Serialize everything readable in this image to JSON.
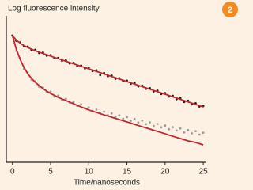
{
  "chart_data": {
    "type": "scatter",
    "title": "Log fluorescence intensity",
    "badge": "2",
    "x_label": "Time/nanoseconds",
    "xlim": [
      -0.8,
      25.3
    ],
    "xticks": [
      0,
      5,
      10,
      15,
      20,
      25
    ],
    "ylim": [
      0,
      100
    ],
    "x": [
      0,
      0.5,
      1,
      1.5,
      2,
      2.5,
      3,
      3.5,
      4,
      4.5,
      5,
      5.5,
      6,
      6.5,
      7,
      7.5,
      8,
      8.5,
      9,
      9.5,
      10,
      10.5,
      11,
      11.5,
      12,
      12.5,
      13,
      13.5,
      14,
      14.5,
      15,
      15.5,
      16,
      16.5,
      17,
      17.5,
      18,
      18.5,
      19,
      19.5,
      20,
      20.5,
      21,
      21.5,
      22,
      22.5,
      23,
      23.5,
      24,
      24.5,
      25
    ],
    "series": [
      {
        "type": "scatter",
        "color": "#9a9a9a",
        "values": [
          86.5,
          76.0,
          71.2,
          63.8,
          61.4,
          56.5,
          55.3,
          51.6,
          51.0,
          47.9,
          48.2,
          44.9,
          45.5,
          42.6,
          43.3,
          40.8,
          41.2,
          38.6,
          39.5,
          36.9,
          37.4,
          35.1,
          36.0,
          33.7,
          34.6,
          32.2,
          33.4,
          30.9,
          32.0,
          29.7,
          30.8,
          28.4,
          29.6,
          27.2,
          28.5,
          26.1,
          27.3,
          24.8,
          26.2,
          23.9,
          25.1,
          22.6,
          24.0,
          21.7,
          23.1,
          20.4,
          22.0,
          19.8,
          21.3,
          18.9,
          20.2
        ]
      },
      {
        "type": "scatter",
        "color": "#1a1a1a",
        "values": [
          86.5,
          83.0,
          81.8,
          79.2,
          78.9,
          76.6,
          76.8,
          74.6,
          74.9,
          72.8,
          73.1,
          71.0,
          71.3,
          69.4,
          69.6,
          67.5,
          67.9,
          65.9,
          66.0,
          64.1,
          64.4,
          62.3,
          62.8,
          59.6,
          60.9,
          58.8,
          59.2,
          57.0,
          57.4,
          55.4,
          55.7,
          53.6,
          54.1,
          51.8,
          52.3,
          50.2,
          50.6,
          48.4,
          48.9,
          46.6,
          47.2,
          44.9,
          45.4,
          43.1,
          43.8,
          41.2,
          42.0,
          39.6,
          40.3,
          38.1,
          38.4
        ]
      },
      {
        "type": "line",
        "color": "#c0272d",
        "values": [
          86.5,
          77.3,
          70.3,
          64.9,
          60.5,
          57.3,
          54.6,
          52.4,
          50.3,
          48.6,
          47.0,
          45.7,
          44.3,
          43.2,
          42.2,
          41.1,
          40.0,
          38.9,
          37.8,
          36.8,
          35.7,
          34.9,
          34.1,
          33.2,
          32.4,
          31.6,
          30.8,
          30.0,
          29.2,
          28.4,
          27.6,
          26.8,
          25.9,
          25.1,
          24.3,
          23.5,
          22.7,
          21.9,
          21.1,
          20.3,
          19.5,
          18.6,
          17.8,
          17.0,
          16.2,
          15.4,
          14.6,
          14.1,
          13.5,
          12.7,
          11.9
        ]
      },
      {
        "type": "line",
        "color": "#c0272d",
        "values": [
          86.5,
          83.5,
          81.3,
          79.7,
          78.4,
          77.2,
          76.2,
          75.2,
          74.3,
          73.4,
          72.5,
          71.6,
          70.7,
          69.9,
          69.0,
          68.1,
          67.3,
          66.4,
          65.5,
          64.7,
          63.8,
          62.9,
          62.1,
          61.2,
          60.3,
          59.5,
          58.6,
          57.7,
          56.9,
          56.0,
          55.1,
          54.3,
          53.4,
          52.5,
          51.7,
          50.8,
          49.9,
          49.1,
          48.2,
          47.3,
          46.5,
          45.6,
          44.7,
          43.9,
          43.0,
          42.1,
          41.3,
          40.4,
          39.5,
          38.7,
          37.8
        ]
      }
    ]
  }
}
